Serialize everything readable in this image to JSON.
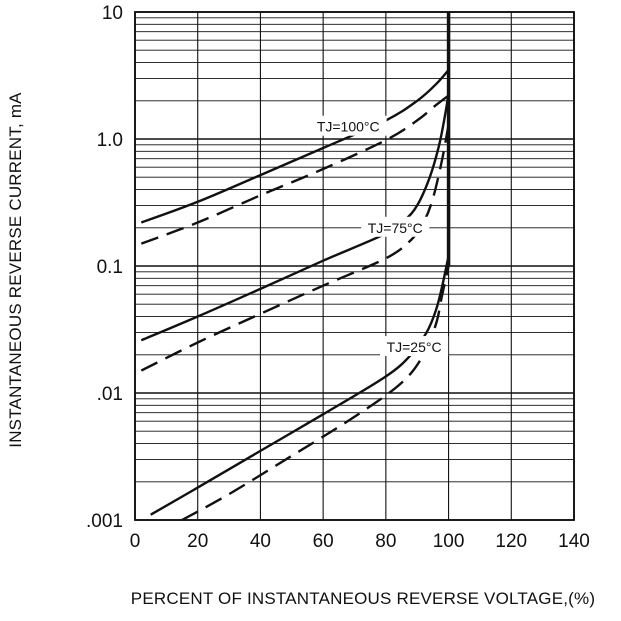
{
  "chart_data": {
    "type": "line",
    "title": "",
    "xlabel": "PERCENT OF INSTANTANEOUS REVERSE VOLTAGE,(%)",
    "ylabel": "INSTANTANEOUS REVERSE CURRENT, mA",
    "xlim": [
      0,
      140
    ],
    "ylim": [
      0.001,
      10
    ],
    "yscale": "log",
    "grid": true,
    "x_ticks": [
      0,
      20,
      40,
      60,
      80,
      100,
      120,
      140
    ],
    "x_tick_labels": [
      "0",
      "20",
      "40",
      "60",
      "80",
      "100",
      "120",
      "140"
    ],
    "y_ticks": [
      0.001,
      0.01,
      0.1,
      1,
      10
    ],
    "y_tick_labels": [
      ".001",
      ".01",
      "0.1",
      "1.0",
      "10"
    ],
    "series": [
      {
        "temp": "100",
        "style": "solid",
        "x": [
          2,
          20,
          40,
          60,
          80,
          90,
          96,
          100
        ],
        "y": [
          0.22,
          0.32,
          0.52,
          0.85,
          1.4,
          2.0,
          2.7,
          3.5
        ]
      },
      {
        "temp": "100",
        "style": "dashed",
        "x": [
          2,
          20,
          40,
          60,
          80,
          90,
          96,
          100
        ],
        "y": [
          0.15,
          0.22,
          0.36,
          0.58,
          0.98,
          1.4,
          1.85,
          2.2
        ]
      },
      {
        "temp": "75",
        "style": "solid",
        "x": [
          2,
          20,
          40,
          60,
          80,
          86,
          90,
          94,
          97,
          99,
          100
        ],
        "y": [
          0.026,
          0.04,
          0.066,
          0.11,
          0.18,
          0.23,
          0.3,
          0.5,
          0.9,
          1.6,
          2.3
        ]
      },
      {
        "temp": "75",
        "style": "dashed",
        "x": [
          2,
          20,
          40,
          60,
          80,
          88,
          92,
          95,
          98,
          100
        ],
        "y": [
          0.015,
          0.025,
          0.042,
          0.07,
          0.115,
          0.16,
          0.22,
          0.34,
          0.7,
          1.3
        ]
      },
      {
        "temp": "25",
        "style": "solid",
        "x": [
          5,
          20,
          40,
          60,
          80,
          88,
          93,
          96,
          98,
          100
        ],
        "y": [
          0.0011,
          0.0018,
          0.0035,
          0.0068,
          0.0135,
          0.02,
          0.03,
          0.045,
          0.07,
          0.12
        ]
      },
      {
        "temp": "25",
        "style": "dashed",
        "x": [
          15,
          30,
          50,
          70,
          85,
          92,
          96,
          98,
          100
        ],
        "y": [
          0.001,
          0.0016,
          0.0032,
          0.0065,
          0.012,
          0.02,
          0.035,
          0.06,
          0.1
        ]
      }
    ],
    "annotations": [
      {
        "label_text": "TJ=100°C",
        "x": 68,
        "y": 1.25
      },
      {
        "label_text": "TJ=75°C",
        "x": 83,
        "y": 0.2
      },
      {
        "label_text": "TJ=25°C",
        "x": 89,
        "y": 0.023
      }
    ],
    "line_color": "#111111",
    "grid_color": "#111111"
  }
}
